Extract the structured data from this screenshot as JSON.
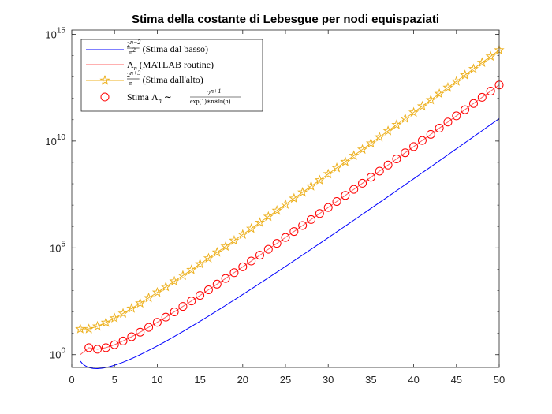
{
  "chart_data": {
    "type": "line",
    "title": "Stima della costante di Lebesgue per nodi equispaziati",
    "xlabel": "",
    "ylabel": "",
    "xlim": [
      0,
      50
    ],
    "ylim_log10": [
      -0.6,
      15.2
    ],
    "yscale": "log",
    "grid": false,
    "legend_position": "top-left",
    "x_ticks": [
      0,
      5,
      10,
      15,
      20,
      25,
      30,
      35,
      40,
      45,
      50
    ],
    "x_tick_labels": [
      "0",
      "5",
      "10",
      "15",
      "20",
      "25",
      "30",
      "35",
      "40",
      "45",
      "50"
    ],
    "y_ticks": [
      {
        "base": "10",
        "exp": "0",
        "value_log10": 0
      },
      {
        "base": "10",
        "exp": "5",
        "value_log10": 5
      },
      {
        "base": "10",
        "exp": "10",
        "value_log10": 10
      },
      {
        "base": "10",
        "exp": "15",
        "value_log10": 15
      }
    ],
    "series": [
      {
        "name": "2^{n-2}/n^2 (Stima dal basso)",
        "legend": {
          "num": "2",
          "num_exp": "n−2",
          "den": "n",
          "den_exp": "2",
          "text": "(Stima dal basso)"
        },
        "color": "#0000ff",
        "style": "line",
        "formula": "2^(n-2)/n^2",
        "x_range": [
          1,
          50
        ]
      },
      {
        "name": "Λn (MATLAB routine)",
        "legend": {
          "sym": "Λ",
          "sub": "n",
          "text": "(MATLAB routine)"
        },
        "color": "#ff6060",
        "style": "line",
        "formula": "2^(n+1)/(e*n*ln n)",
        "x_range": [
          1,
          50
        ],
        "first_value": 1
      },
      {
        "name": "2^{n+3}/n (Stima dall'alto)",
        "legend": {
          "num": "2",
          "num_exp": "n+3",
          "den": "n",
          "text": "(Stima dall'alto)"
        },
        "color": "#edb120",
        "style": "line-star",
        "formula": "2^(n+3)/n",
        "x_range": [
          1,
          50
        ]
      },
      {
        "name": "Stima Λn ~ 2^{n+1}/(exp(1)*n*ln(n))",
        "legend": {
          "prefix": "Stima",
          "sym": "Λ",
          "sub": "n",
          "tilde": "∼",
          "num": "2",
          "num_exp": "n+1",
          "den": "exp(1)∗n∗ln(n)"
        },
        "color": "#ff0000",
        "style": "circle",
        "formula": "2^(n+1)/(e*n*ln n)",
        "x_range": [
          2,
          50
        ]
      }
    ]
  }
}
